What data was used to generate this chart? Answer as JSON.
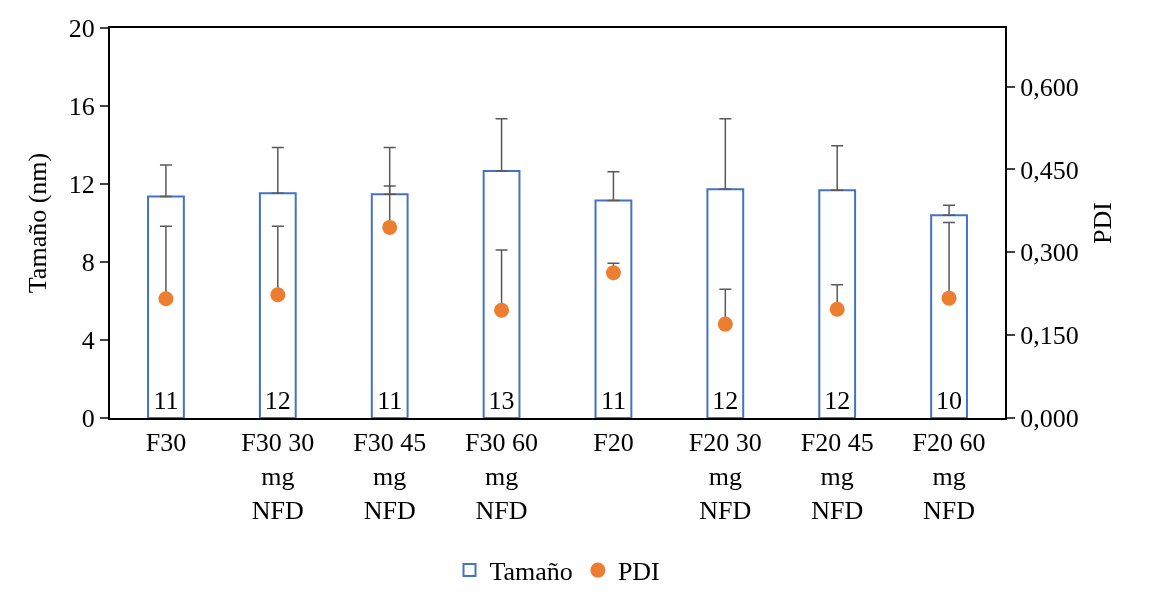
{
  "chart_data": {
    "type": "bar",
    "ylabel": "Tamaño (nm)",
    "y2label": "PDI",
    "categories": [
      "F30",
      "F30 30\nmg\nNFD",
      "F30 45\nmg\nNFD",
      "F30 60\nmg\nNFD",
      "F20",
      "F20 30\nmg\nNFD",
      "F20 45\nmg\nNFD",
      "F20 60\nmg\nNFD"
    ],
    "series": [
      {
        "name": "Tamaño",
        "color": "#4472c4",
        "values": [
          11.36,
          11.53,
          11.48,
          12.67,
          11.16,
          11.73,
          11.68,
          10.4
        ],
        "errors": [
          [
            11.36,
            12.97
          ],
          [
            11.53,
            13.87
          ],
          [
            11.48,
            13.87
          ],
          [
            12.67,
            15.35
          ],
          [
            11.16,
            12.63
          ],
          [
            11.73,
            15.35
          ],
          [
            11.68,
            13.96
          ],
          [
            10.4,
            10.91
          ]
        ],
        "value_labels": [
          "11",
          "12",
          "11",
          "13",
          "11",
          "12",
          "12",
          "10"
        ]
      },
      {
        "name": "PDI",
        "type": "scatter",
        "axis": "y2",
        "color": "#ed7d31",
        "values": [
          0.216,
          0.223,
          0.345,
          0.195,
          0.263,
          0.17,
          0.197,
          0.217
        ],
        "errors": [
          [
            0.216,
            0.347
          ],
          [
            0.223,
            0.347
          ],
          [
            0.345,
            0.42
          ],
          [
            0.195,
            0.304
          ],
          [
            0.263,
            0.28
          ],
          [
            0.17,
            0.233
          ],
          [
            0.197,
            0.241
          ],
          [
            0.217,
            0.354
          ]
        ]
      }
    ],
    "ylim": [
      0,
      20
    ],
    "yticks": [
      0,
      4,
      8,
      12,
      16,
      20
    ],
    "y2lim": [
      0,
      0.706
    ],
    "y2ticks": [
      {
        "value": 0,
        "label": "0,000"
      },
      {
        "value": 0.15,
        "label": "0,150"
      },
      {
        "value": 0.3,
        "label": "0,300"
      },
      {
        "value": 0.45,
        "label": "0,450"
      },
      {
        "value": 0.6,
        "label": "0,600"
      }
    ],
    "grid": false,
    "legend": "bottom",
    "marker": "circle"
  }
}
